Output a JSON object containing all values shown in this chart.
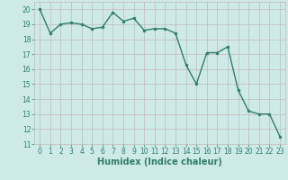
{
  "x": [
    0,
    1,
    2,
    3,
    4,
    5,
    6,
    7,
    8,
    9,
    10,
    11,
    12,
    13,
    14,
    15,
    16,
    17,
    18,
    19,
    20,
    21,
    22,
    23
  ],
  "y": [
    20.0,
    18.4,
    19.0,
    19.1,
    19.0,
    18.7,
    18.8,
    19.8,
    19.2,
    19.4,
    18.6,
    18.7,
    18.7,
    18.4,
    16.3,
    15.0,
    17.1,
    17.1,
    17.5,
    14.6,
    13.2,
    13.0,
    13.0,
    11.5
  ],
  "line_color": "#2e7d6e",
  "marker": "o",
  "marker_size": 2.0,
  "line_width": 1.0,
  "bg_color": "#ceeae6",
  "grid_color": "#c0b8b8",
  "tick_color": "#2e7d6e",
  "xlabel": "Humidex (Indice chaleur)",
  "xlabel_fontsize": 7,
  "tick_fontsize": 5.5,
  "ylim": [
    11,
    20.5
  ],
  "yticks": [
    11,
    12,
    13,
    14,
    15,
    16,
    17,
    18,
    19,
    20
  ],
  "xticks": [
    0,
    1,
    2,
    3,
    4,
    5,
    6,
    7,
    8,
    9,
    10,
    11,
    12,
    13,
    14,
    15,
    16,
    17,
    18,
    19,
    20,
    21,
    22,
    23
  ]
}
